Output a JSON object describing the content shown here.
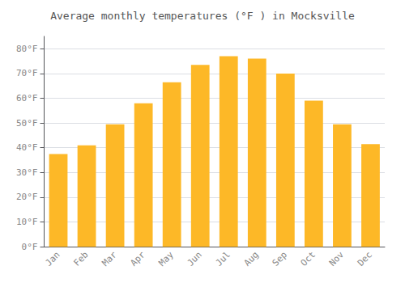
{
  "chart_data": {
    "type": "bar",
    "title": "Average monthly temperatures (°F ) in Mocksville",
    "categories": [
      "Jan",
      "Feb",
      "Mar",
      "Apr",
      "May",
      "Jun",
      "Jul",
      "Aug",
      "Sep",
      "Oct",
      "Nov",
      "Dec"
    ],
    "values": [
      37.5,
      41.0,
      49.5,
      58.0,
      66.5,
      73.5,
      77.0,
      76.0,
      70.0,
      59.0,
      49.5,
      41.5
    ],
    "color": "#FDB827",
    "ylim": [
      0,
      85
    ],
    "yticks": [
      {
        "value": 0,
        "label": "0°F"
      },
      {
        "value": 10,
        "label": "10°F"
      },
      {
        "value": 20,
        "label": "20°F"
      },
      {
        "value": 30,
        "label": "30°F"
      },
      {
        "value": 40,
        "label": "40°F"
      },
      {
        "value": 50,
        "label": "50°F"
      },
      {
        "value": 60,
        "label": "60°F"
      },
      {
        "value": 70,
        "label": "70°F"
      },
      {
        "value": 80,
        "label": "80°F"
      }
    ],
    "grid": true
  }
}
